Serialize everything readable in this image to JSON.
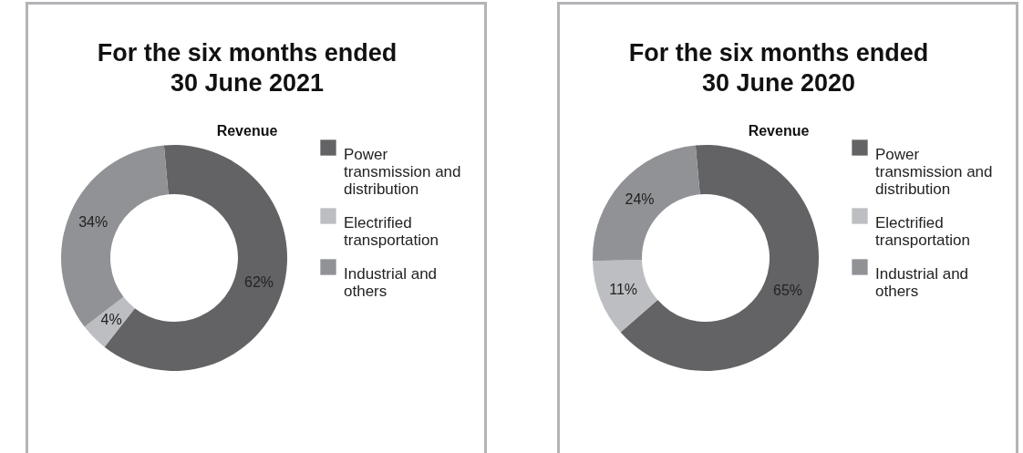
{
  "chart_data": [
    {
      "type": "donut",
      "title": "For the six months ended 30 June 2021",
      "subtitle": "Revenue",
      "categories": [
        "Power transmission and distribution",
        "Electrified transportation",
        "Industrial and others"
      ],
      "values": [
        62,
        4,
        34
      ],
      "value_labels": [
        "62%",
        "4%",
        "34%"
      ],
      "colors": [
        "#636366",
        "#bdbec2",
        "#919296"
      ],
      "legend": "right"
    },
    {
      "type": "donut",
      "title": "For the six months ended 30 June 2020",
      "subtitle": "Revenue",
      "categories": [
        "Power transmission and distribution",
        "Electrified transportation",
        "Industrial and others"
      ],
      "values": [
        65,
        11,
        24
      ],
      "value_labels": [
        "65%",
        "11%",
        "24%"
      ],
      "colors": [
        "#636366",
        "#bdbec2",
        "#919296"
      ],
      "legend": "right"
    }
  ]
}
